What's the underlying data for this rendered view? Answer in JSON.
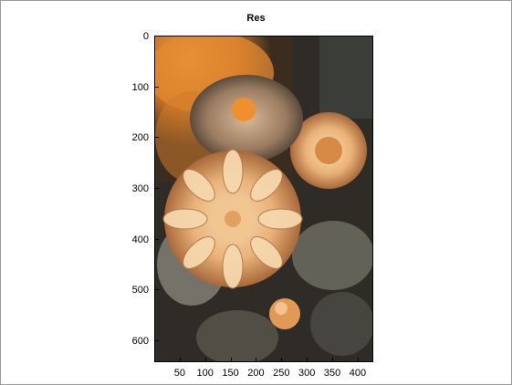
{
  "figure": {
    "title": "Res",
    "image_description_icon": "dahlia-photo-orange-tint",
    "y_ticks": [
      "0",
      "100",
      "200",
      "300",
      "400",
      "500",
      "600"
    ],
    "x_ticks": [
      "50",
      "100",
      "150",
      "200",
      "250",
      "300",
      "350",
      "400"
    ]
  },
  "colors": {
    "window_border": "#9a9a9a",
    "image_dark": "#2b2822",
    "petal_light": "#f2d3a8",
    "petal_orange": "#e39a4e",
    "background_orange": "#e8862c"
  }
}
